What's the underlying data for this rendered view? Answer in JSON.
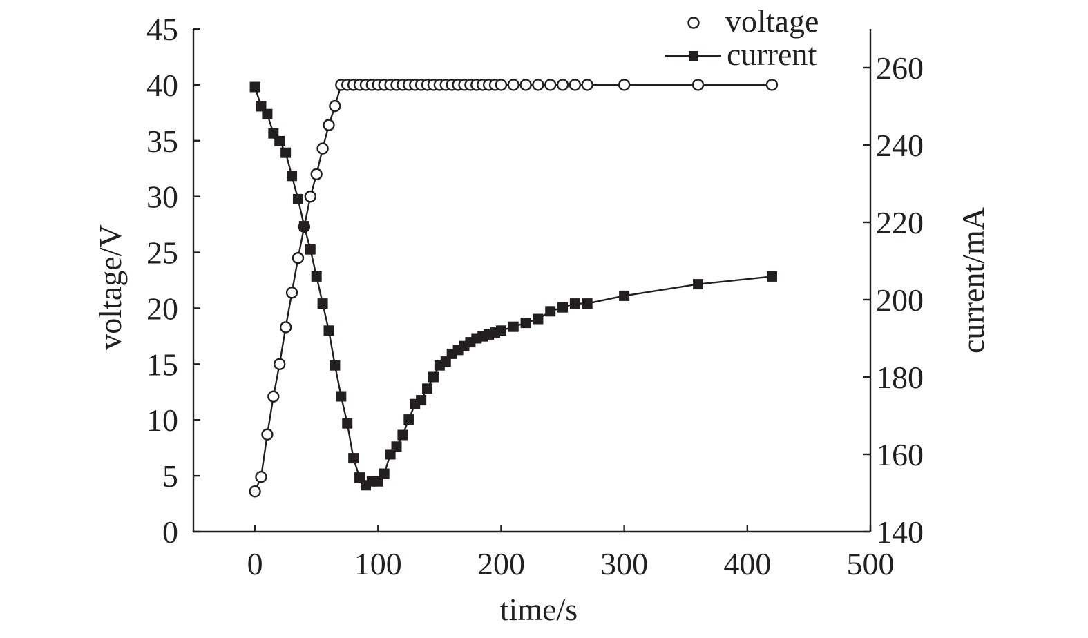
{
  "chart_data": {
    "type": "line",
    "xlabel": "time/s",
    "ylabel": "voltage/V",
    "y2label": "current/mA",
    "xlim": [
      -50,
      500
    ],
    "ylim": [
      0,
      45
    ],
    "y2lim": [
      140,
      270
    ],
    "x_ticks": [
      0,
      100,
      200,
      300,
      400,
      500
    ],
    "y_ticks": [
      0,
      5,
      10,
      15,
      20,
      25,
      30,
      35,
      40,
      45
    ],
    "y2_ticks": [
      140,
      160,
      180,
      200,
      220,
      240,
      260
    ],
    "grid": false,
    "legend_position": "top-right",
    "series": [
      {
        "name": "voltage",
        "axis": "left",
        "marker": "open-circle",
        "line": true,
        "color": "#231f20",
        "x": [
          0,
          5,
          10,
          15,
          20,
          25,
          30,
          35,
          40,
          45,
          50,
          55,
          60,
          65,
          70,
          75,
          80,
          85,
          90,
          95,
          100,
          105,
          110,
          115,
          120,
          125,
          130,
          135,
          140,
          145,
          150,
          155,
          160,
          165,
          170,
          175,
          180,
          185,
          190,
          195,
          200,
          210,
          220,
          230,
          240,
          250,
          260,
          270,
          300,
          360,
          420
        ],
        "values": [
          3.6,
          4.9,
          8.7,
          12.1,
          15.0,
          18.3,
          21.4,
          24.5,
          27.3,
          30.0,
          32.0,
          34.3,
          36.4,
          38.1,
          40,
          40,
          40,
          40,
          40,
          40,
          40,
          40,
          40,
          40,
          40,
          40,
          40,
          40,
          40,
          40,
          40,
          40,
          40,
          40,
          40,
          40,
          40,
          40,
          40,
          40,
          40,
          40,
          40,
          40,
          40,
          40,
          40,
          40,
          40,
          40,
          40
        ]
      },
      {
        "name": "current",
        "axis": "right",
        "marker": "filled-square",
        "line": true,
        "color": "#231f20",
        "x": [
          0,
          5,
          10,
          15,
          20,
          25,
          30,
          35,
          40,
          45,
          50,
          55,
          60,
          65,
          70,
          75,
          80,
          85,
          90,
          95,
          100,
          105,
          110,
          115,
          120,
          125,
          130,
          135,
          140,
          145,
          150,
          155,
          160,
          165,
          170,
          175,
          180,
          185,
          190,
          195,
          200,
          210,
          220,
          230,
          240,
          250,
          260,
          270,
          300,
          360,
          420
        ],
        "values": [
          255,
          250,
          248,
          243,
          241,
          238,
          232,
          226,
          219,
          213,
          206,
          199,
          192,
          183,
          175,
          168,
          159,
          154,
          152,
          153,
          153,
          155,
          160,
          162,
          165,
          169,
          173,
          174,
          177,
          180,
          183,
          184,
          186,
          187,
          188,
          189,
          190,
          190.5,
          191,
          191.5,
          192,
          193,
          194,
          195,
          197,
          198,
          199,
          199,
          201,
          204,
          206
        ]
      }
    ]
  }
}
